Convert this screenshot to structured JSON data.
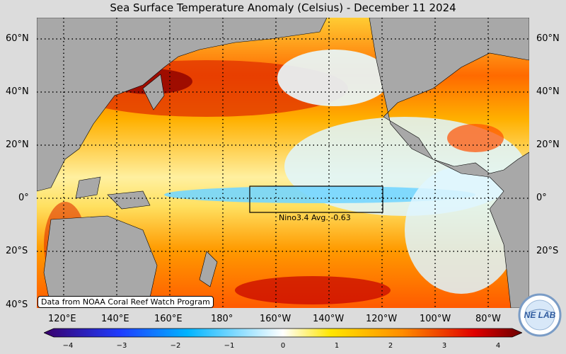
{
  "title": "Sea Surface Temperature Anomaly (Celsius) - December 11 2024",
  "lat_labels": [
    "60°N",
    "40°N",
    "20°N",
    "0°",
    "20°S",
    "40°S"
  ],
  "lon_labels": [
    "120°E",
    "140°E",
    "160°E",
    "180°",
    "160°W",
    "140°W",
    "120°W",
    "100°W",
    "80°W"
  ],
  "credit": "Data from NOAA Coral Reef Watch Program",
  "nino_box_label": "Nino3.4 Avg. -0.63",
  "colorbar": {
    "ticks": [
      "−4",
      "−3",
      "−2",
      "−1",
      "0",
      "1",
      "2",
      "3",
      "4"
    ],
    "colors": [
      "#3a006b",
      "#1e3cff",
      "#00b4ff",
      "#ffffff",
      "#ffe600",
      "#ff8c00",
      "#e00000",
      "#6b0000"
    ]
  },
  "logo_text": "NE LAB"
}
